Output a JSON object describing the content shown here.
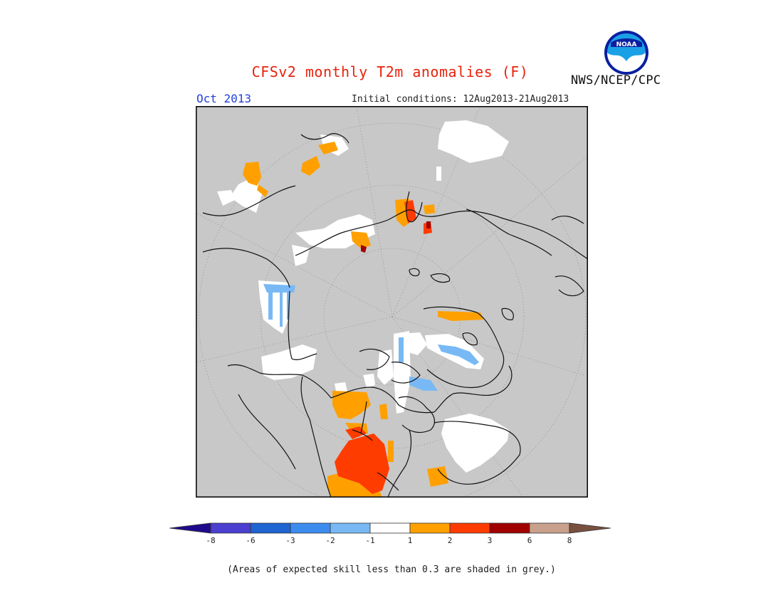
{
  "header": {
    "title": "CFSv2 monthly T2m anomalies (F)",
    "period": "Oct 2013",
    "initial_conditions": "Initial conditions: 12Aug2013-21Aug2013",
    "agency": "NWS/NCEP/CPC",
    "logo_text": "NOAA"
  },
  "legend": {
    "ticks": [
      "-8",
      "-6",
      "-3",
      "-2",
      "-1",
      "1",
      "2",
      "3",
      "6",
      "8"
    ],
    "colors": [
      "#1e0a8c",
      "#4a3fcf",
      "#1e64d2",
      "#3c8cf0",
      "#78b9f5",
      "#ffffff",
      "#ffa000",
      "#ff3c00",
      "#a00000",
      "#c8a08c",
      "#785040"
    ],
    "footnote": "(Areas of expected skill less than 0.3 are shaded in grey.)"
  },
  "map": {
    "projection": "north-polar-stereographic",
    "background_color": "#c8c8c8",
    "skill_mask_color": "#c8c8c8"
  }
}
